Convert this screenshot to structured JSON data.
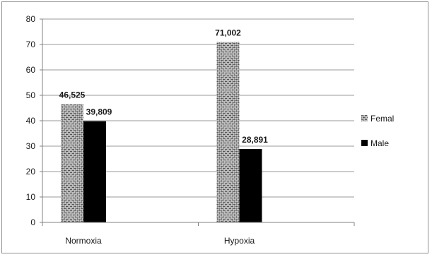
{
  "chart_data": {
    "type": "bar",
    "categories": [
      "Normoxia",
      "Hypoxia"
    ],
    "series": [
      {
        "name": "Femal",
        "values": [
          46.525,
          71.002
        ],
        "labels": [
          "46,525",
          "71,002"
        ],
        "color": "#9a9a9a",
        "pattern": "woven"
      },
      {
        "name": "Male",
        "values": [
          39.809,
          28.891
        ],
        "labels": [
          "39,809",
          "28,891"
        ],
        "color": "#000000"
      }
    ],
    "title": "",
    "xlabel": "",
    "ylabel": "",
    "ylim": [
      0,
      80
    ],
    "yticks": [
      0,
      10,
      20,
      30,
      40,
      50,
      60,
      70,
      80
    ],
    "grid": true,
    "legend": "right"
  }
}
